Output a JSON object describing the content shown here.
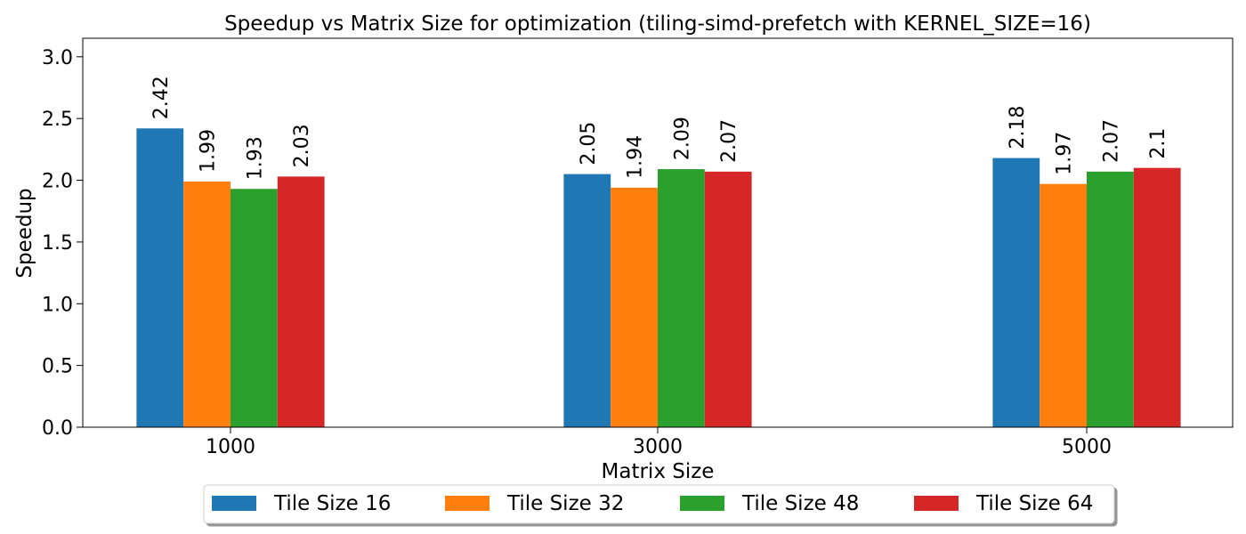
{
  "chart_data": {
    "type": "bar",
    "title": "Speedup vs Matrix Size for optimization (tiling-simd-prefetch with KERNEL_SIZE=16)",
    "xlabel": "Matrix Size",
    "ylabel": "Speedup",
    "categories": [
      "1000",
      "3000",
      "5000"
    ],
    "ylim": [
      0,
      3.15
    ],
    "yticks": [
      "0.0",
      "0.5",
      "1.0",
      "1.5",
      "2.0",
      "2.5",
      "3.0"
    ],
    "grid": false,
    "legend_position": "bottom-center",
    "series": [
      {
        "name": "Tile Size 16",
        "color": "#1f77b4",
        "values": [
          2.42,
          2.05,
          2.18
        ],
        "labels": [
          "2.42",
          "2.05",
          "2.18"
        ]
      },
      {
        "name": "Tile Size 32",
        "color": "#ff7f0e",
        "values": [
          1.99,
          1.94,
          1.97
        ],
        "labels": [
          "1.99",
          "1.94",
          "1.97"
        ]
      },
      {
        "name": "Tile Size 48",
        "color": "#2ca02c",
        "values": [
          1.93,
          2.09,
          2.07
        ],
        "labels": [
          "1.93",
          "2.09",
          "2.07"
        ]
      },
      {
        "name": "Tile Size 64",
        "color": "#d62728",
        "values": [
          2.03,
          2.07,
          2.1
        ],
        "labels": [
          "2.03",
          "2.07",
          "2.1"
        ]
      }
    ]
  }
}
